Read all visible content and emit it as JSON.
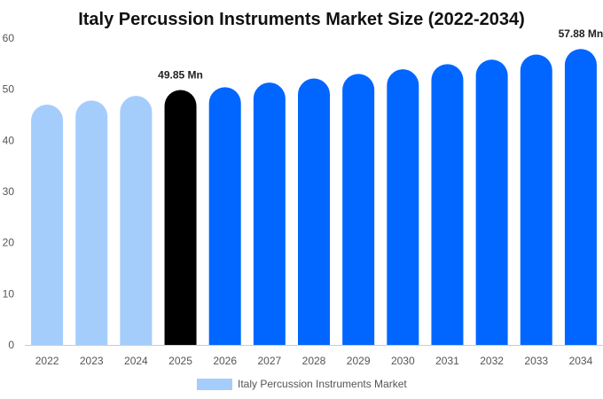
{
  "chart_data": {
    "type": "bar",
    "title": "Italy Percussion Instruments Market Size (2022-2034)",
    "xlabel": "",
    "ylabel": "",
    "categories": [
      "2022",
      "2023",
      "2024",
      "2025",
      "2026",
      "2027",
      "2028",
      "2029",
      "2030",
      "2031",
      "2032",
      "2033",
      "2034"
    ],
    "series": [
      {
        "name": "Italy Percussion Instruments Market",
        "values": [
          47.0,
          47.8,
          48.7,
          49.85,
          50.4,
          51.3,
          52.1,
          53.0,
          53.9,
          54.9,
          55.8,
          56.8,
          57.88
        ]
      }
    ],
    "ylim": [
      0,
      60
    ],
    "yticks": [
      0,
      10,
      20,
      30,
      40,
      50,
      60
    ],
    "data_labels": [
      {
        "index": 3,
        "text": "49.85 Mn"
      },
      {
        "index": 12,
        "text": "57.88 Mn"
      }
    ],
    "bar_colors": [
      "#a4cdfc",
      "#a4cdfc",
      "#a4cdfc",
      "#000000",
      "#0066ff",
      "#0066ff",
      "#0066ff",
      "#0066ff",
      "#0066ff",
      "#0066ff",
      "#0066ff",
      "#0066ff",
      "#0066ff"
    ],
    "legend_color": "#a4cdfc",
    "legend_position": "bottom",
    "grid": false
  }
}
